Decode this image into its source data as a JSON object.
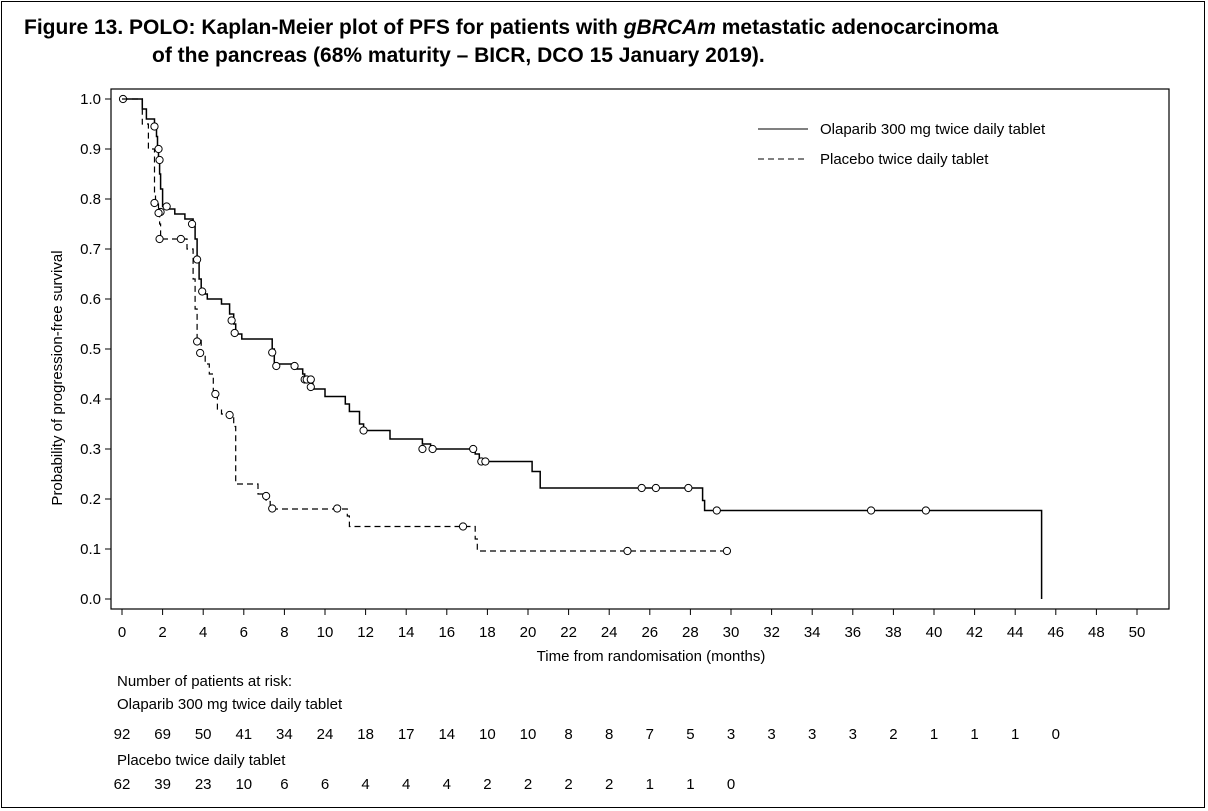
{
  "title": {
    "prefix": "Figure 13. POLO: Kaplan-Meier plot of PFS for patients with ",
    "italic": "gBRCAm",
    "suffix": " metastatic adenocarcinoma",
    "line2": "of the pancreas (68% maturity – BICR, DCO 15 January 2019)."
  },
  "chart_data": {
    "type": "line",
    "subtype": "kaplan-meier step",
    "xlabel": "Time from randomisation (months)",
    "ylabel": "Probability of progression-free survival",
    "xlim": [
      0,
      50
    ],
    "ylim": [
      0,
      1
    ],
    "x_ticks": [
      0,
      2,
      4,
      6,
      8,
      10,
      12,
      14,
      16,
      18,
      20,
      22,
      24,
      26,
      28,
      30,
      32,
      34,
      36,
      38,
      40,
      42,
      44,
      46,
      48,
      50
    ],
    "y_ticks": [
      0.0,
      0.1,
      0.2,
      0.3,
      0.4,
      0.5,
      0.6,
      0.7,
      0.8,
      0.9,
      1.0
    ],
    "y_tick_labels": [
      "0.0",
      "0.1",
      "0.2",
      "0.3",
      "0.4",
      "0.5",
      "0.6",
      "0.7",
      "0.8",
      "0.9",
      "1.0"
    ],
    "grid": false,
    "legend_position": "top-right",
    "series": [
      {
        "name": "Olaparib 300 mg twice daily tablet",
        "style": "solid",
        "steps": [
          [
            0,
            1.0
          ],
          [
            0.9,
            1.0
          ],
          [
            1.0,
            0.98
          ],
          [
            1.2,
            0.96
          ],
          [
            1.6,
            0.95
          ],
          [
            1.7,
            0.925
          ],
          [
            1.75,
            0.9
          ],
          [
            1.8,
            0.88
          ],
          [
            1.85,
            0.85
          ],
          [
            1.9,
            0.82
          ],
          [
            2.0,
            0.785
          ],
          [
            2.3,
            0.78
          ],
          [
            2.6,
            0.77
          ],
          [
            3.1,
            0.76
          ],
          [
            3.5,
            0.745
          ],
          [
            3.6,
            0.72
          ],
          [
            3.7,
            0.68
          ],
          [
            3.8,
            0.64
          ],
          [
            3.9,
            0.615
          ],
          [
            4.1,
            0.61
          ],
          [
            4.2,
            0.6
          ],
          [
            4.9,
            0.59
          ],
          [
            5.3,
            0.57
          ],
          [
            5.5,
            0.55
          ],
          [
            5.6,
            0.53
          ],
          [
            5.9,
            0.52
          ],
          [
            7.4,
            0.5
          ],
          [
            7.5,
            0.47
          ],
          [
            8.5,
            0.46
          ],
          [
            8.9,
            0.45
          ],
          [
            9.0,
            0.44
          ],
          [
            9.4,
            0.42
          ],
          [
            10.0,
            0.405
          ],
          [
            11.0,
            0.39
          ],
          [
            11.2,
            0.375
          ],
          [
            11.7,
            0.35
          ],
          [
            11.9,
            0.337
          ],
          [
            13.2,
            0.32
          ],
          [
            14.8,
            0.31
          ],
          [
            15.2,
            0.3
          ],
          [
            17.4,
            0.29
          ],
          [
            17.6,
            0.275
          ],
          [
            20.2,
            0.255
          ],
          [
            20.6,
            0.222
          ],
          [
            28.6,
            0.197
          ],
          [
            28.7,
            0.177
          ],
          [
            45.3,
            0.177
          ],
          [
            45.3,
            0.0
          ]
        ],
        "censored": [
          [
            0.05,
            1.0
          ],
          [
            1.6,
            0.945
          ],
          [
            1.8,
            0.9
          ],
          [
            1.85,
            0.878
          ],
          [
            1.9,
            0.774
          ],
          [
            2.2,
            0.785
          ],
          [
            3.45,
            0.75
          ],
          [
            3.7,
            0.679
          ],
          [
            3.95,
            0.615
          ],
          [
            5.4,
            0.557
          ],
          [
            5.55,
            0.532
          ],
          [
            7.4,
            0.493
          ],
          [
            7.6,
            0.466
          ],
          [
            8.5,
            0.466
          ],
          [
            9.0,
            0.439
          ],
          [
            9.1,
            0.439
          ],
          [
            9.3,
            0.439
          ],
          [
            9.3,
            0.424
          ],
          [
            11.9,
            0.337
          ],
          [
            14.8,
            0.3
          ],
          [
            15.3,
            0.3
          ],
          [
            17.3,
            0.3
          ],
          [
            17.7,
            0.275
          ],
          [
            17.9,
            0.275
          ],
          [
            25.6,
            0.222
          ],
          [
            26.3,
            0.222
          ],
          [
            27.9,
            0.222
          ],
          [
            29.3,
            0.177
          ],
          [
            36.9,
            0.177
          ],
          [
            39.6,
            0.177
          ]
        ]
      },
      {
        "name": "Placebo twice daily tablet",
        "style": "dashed",
        "steps": [
          [
            0,
            1.0
          ],
          [
            0.8,
            1.0
          ],
          [
            1.0,
            0.95
          ],
          [
            1.3,
            0.9
          ],
          [
            1.6,
            0.81
          ],
          [
            1.65,
            0.79
          ],
          [
            1.8,
            0.77
          ],
          [
            1.85,
            0.75
          ],
          [
            1.9,
            0.72
          ],
          [
            3.1,
            0.72
          ],
          [
            3.2,
            0.7
          ],
          [
            3.5,
            0.64
          ],
          [
            3.6,
            0.58
          ],
          [
            3.7,
            0.52
          ],
          [
            3.9,
            0.49
          ],
          [
            4.1,
            0.47
          ],
          [
            4.3,
            0.45
          ],
          [
            4.5,
            0.41
          ],
          [
            4.7,
            0.38
          ],
          [
            4.9,
            0.37
          ],
          [
            5.5,
            0.345
          ],
          [
            5.6,
            0.23
          ],
          [
            6.7,
            0.21
          ],
          [
            7.1,
            0.195
          ],
          [
            7.3,
            0.18
          ],
          [
            11.1,
            0.166
          ],
          [
            11.2,
            0.145
          ],
          [
            17.4,
            0.12
          ],
          [
            17.5,
            0.096
          ],
          [
            29.8,
            0.096
          ]
        ],
        "censored": [
          [
            1.6,
            0.792
          ],
          [
            1.8,
            0.772
          ],
          [
            1.85,
            0.72
          ],
          [
            2.9,
            0.72
          ],
          [
            3.7,
            0.515
          ],
          [
            3.85,
            0.492
          ],
          [
            4.6,
            0.41
          ],
          [
            5.3,
            0.368
          ],
          [
            7.1,
            0.206
          ],
          [
            7.4,
            0.181
          ],
          [
            10.6,
            0.181
          ],
          [
            16.8,
            0.145
          ],
          [
            24.9,
            0.096
          ],
          [
            29.8,
            0.096
          ]
        ]
      }
    ]
  },
  "risk_table": {
    "heading": "Number of patients at risk:",
    "time_points": [
      0,
      2,
      4,
      6,
      8,
      10,
      12,
      14,
      16,
      18,
      20,
      22,
      24,
      26,
      28,
      30,
      32,
      34,
      36,
      38,
      40,
      42,
      44,
      46
    ],
    "arms": [
      {
        "name": "Olaparib 300 mg twice daily tablet",
        "counts": [
          "92",
          "69",
          "50",
          "41",
          "34",
          "24",
          "18",
          "17",
          "14",
          "10",
          "10",
          "8",
          "8",
          "7",
          "5",
          "3",
          "3",
          "3",
          "3",
          "2",
          "1",
          "1",
          "1",
          "0"
        ]
      },
      {
        "name": "Placebo twice daily tablet",
        "counts": [
          "62",
          "39",
          "23",
          "10",
          "6",
          "6",
          "4",
          "4",
          "4",
          "2",
          "2",
          "2",
          "2",
          "1",
          "1",
          "0"
        ]
      }
    ]
  }
}
